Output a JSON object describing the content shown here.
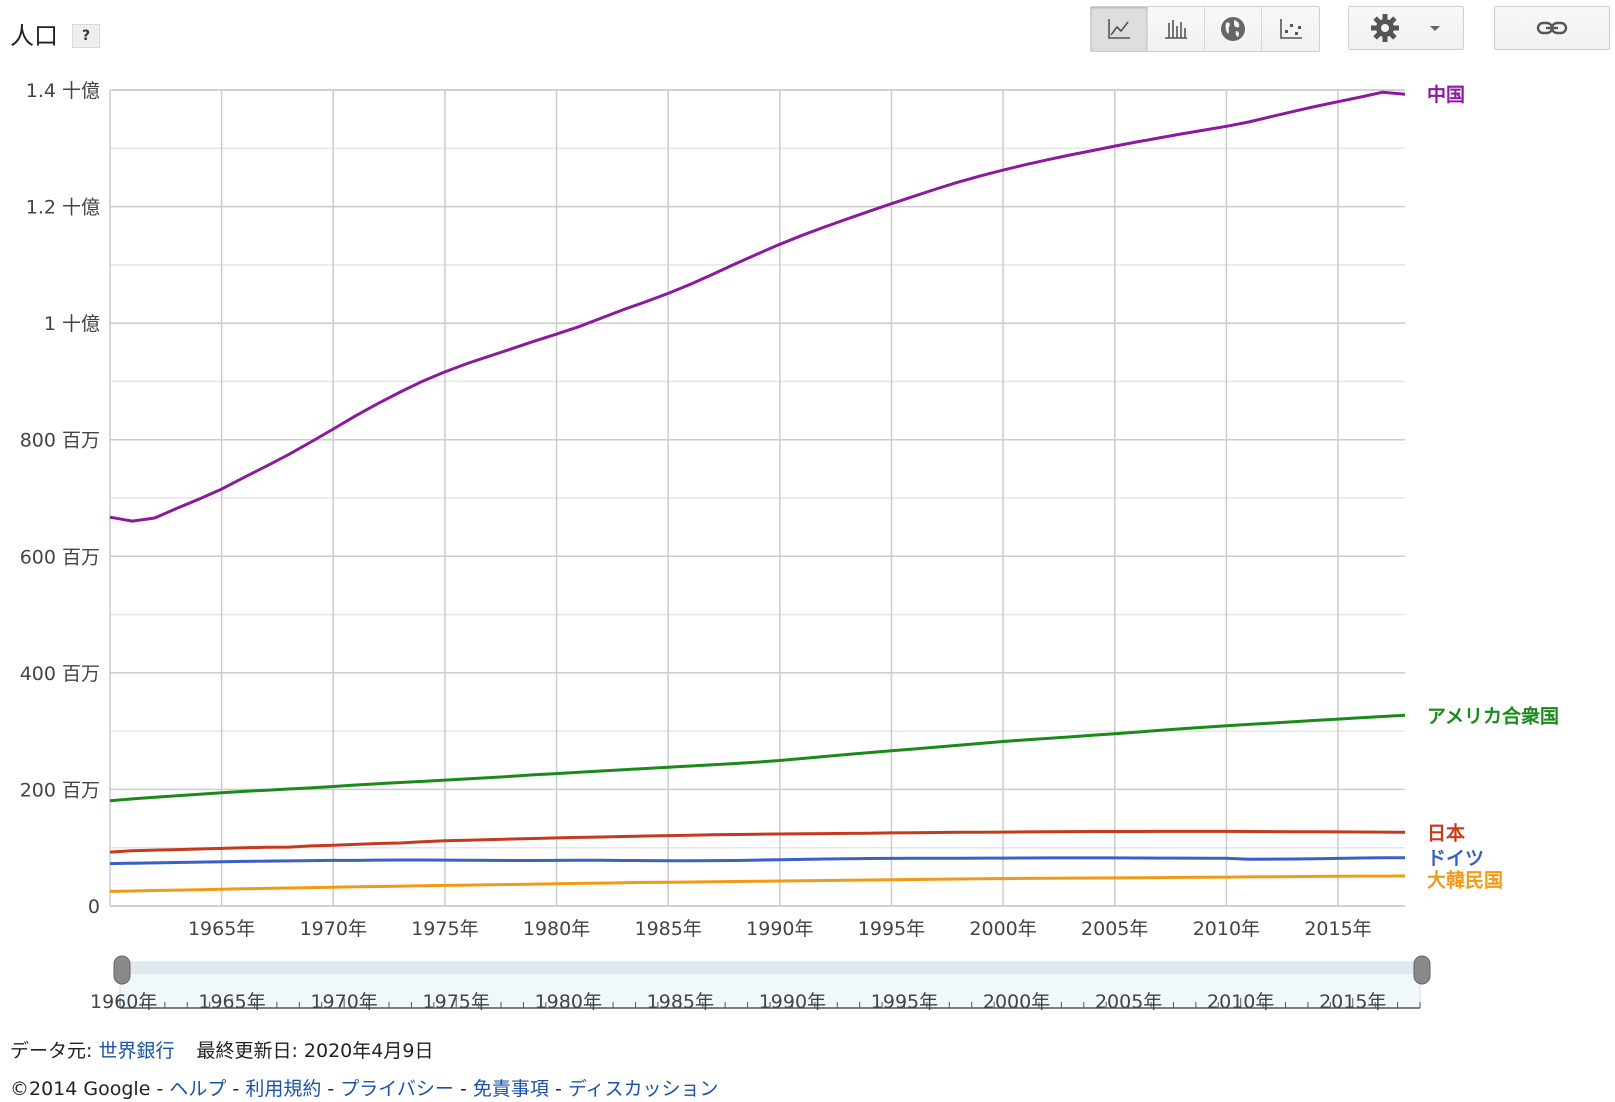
{
  "header": {
    "title": "人口",
    "help_label": "?"
  },
  "toolbar": {
    "views": [
      {
        "icon": "line-chart-icon",
        "active": true
      },
      {
        "icon": "bar-chart-icon",
        "active": false
      },
      {
        "icon": "globe-icon",
        "active": false
      },
      {
        "icon": "scatter-chart-icon",
        "active": false
      }
    ],
    "settings_icon": "gear-icon",
    "dropdown_icon": "caret-down-icon",
    "link_icon": "link-icon"
  },
  "chart_data": {
    "type": "line",
    "x": [
      1960,
      1961,
      1962,
      1963,
      1964,
      1965,
      1966,
      1967,
      1968,
      1969,
      1970,
      1971,
      1972,
      1973,
      1974,
      1975,
      1976,
      1977,
      1978,
      1979,
      1980,
      1981,
      1982,
      1983,
      1984,
      1985,
      1986,
      1987,
      1988,
      1989,
      1990,
      1991,
      1992,
      1993,
      1994,
      1995,
      1996,
      1997,
      1998,
      1999,
      2000,
      2001,
      2002,
      2003,
      2004,
      2005,
      2006,
      2007,
      2008,
      2009,
      2010,
      2011,
      2012,
      2013,
      2014,
      2015,
      2016,
      2017,
      2018
    ],
    "xlim": [
      1960,
      2018
    ],
    "ylim": [
      0,
      1400000000
    ],
    "x_tick_labels": [
      "1965年",
      "1970年",
      "1975年",
      "1980年",
      "1985年",
      "1990年",
      "1995年",
      "2000年",
      "2005年",
      "2010年",
      "2015年"
    ],
    "y_tick_labels": [
      "0",
      "200 百万",
      "400 百万",
      "600 百万",
      "800 百万",
      "1 十億",
      "1.2 十億",
      "1.4 十億"
    ],
    "grid": true,
    "legend": "right, labels at line ends",
    "series": [
      {
        "name": "中国",
        "color": "#8b1a9e",
        "values": [
          667070000,
          660330000,
          665770000,
          682340000,
          698360000,
          715190000,
          735400000,
          754550000,
          774510000,
          796030000,
          818320000,
          841110000,
          862030000,
          881940000,
          900350000,
          916395000,
          930685000,
          943455000,
          956165000,
          969005000,
          981235000,
          993885000,
          1008630000,
          1023310000,
          1036825000,
          1051040000,
          1066790000,
          1084035000,
          1101630000,
          1118650000,
          1135185000,
          1150780000,
          1164970000,
          1178440000,
          1191835000,
          1204855000,
          1217550000,
          1230075000,
          1241935000,
          1252735000,
          1262645000,
          1271850000,
          1280400000,
          1288400000,
          1296075000,
          1303720000,
          1311020000,
          1317885000,
          1324655000,
          1331260000,
          1337705000,
          1345035000,
          1354190000,
          1363240000,
          1371860000,
          1379860000,
          1387790000,
          1396215000,
          1392730000
        ]
      },
      {
        "name": "アメリカ合衆国",
        "color": "#1b8a1b",
        "values": [
          180671000,
          183691000,
          186538000,
          189242000,
          191889000,
          194303000,
          196560000,
          198712000,
          200706000,
          202677000,
          205052000,
          207661000,
          209896000,
          211909000,
          213854000,
          215973000,
          218035000,
          220239000,
          222585000,
          225055000,
          227225000,
          229466000,
          231664000,
          233792000,
          235825000,
          237924000,
          240133000,
          242289000,
          244499000,
          246819000,
          249623000,
          252981000,
          256514000,
          259919000,
          263126000,
          266278000,
          269394000,
          272657000,
          275854000,
          279040000,
          282162000,
          284969000,
          287625000,
          290108000,
          292805000,
          295517000,
          298380000,
          301231000,
          304094000,
          306772000,
          309327000,
          311583000,
          313878000,
          316060000,
          318386000,
          320739000,
          323072000,
          325147000,
          327167000
        ]
      },
      {
        "name": "日本",
        "color": "#c53a1e",
        "values": [
          92500572,
          94943000,
          95832000,
          96812000,
          97826000,
          98883000,
          99790000,
          100725000,
          101061000,
          103172000,
          104345000,
          105697000,
          107188000,
          108079000,
          110162000,
          111940000,
          112771000,
          113863000,
          114898000,
          115870000,
          116782000,
          117648000,
          118449000,
          119259000,
          120018000,
          120754000,
          121492000,
          122091000,
          122613000,
          123116000,
          123537000,
          123921000,
          124229000,
          124536000,
          124961000,
          125439000,
          125757000,
          126057000,
          126400000,
          126631000,
          126843000,
          127149000,
          127445000,
          127718000,
          127761000,
          127773000,
          127854000,
          128001000,
          128063000,
          128047000,
          128070000,
          127833000,
          127629000,
          127445000,
          127276000,
          127141000,
          126994000,
          126785000,
          126529000
        ]
      },
      {
        "name": "ドイツ",
        "color": "#3a5fc7",
        "values": [
          72814900,
          73377632,
          74025784,
          74714353,
          75318337,
          75963695,
          76600311,
          76951336,
          77294314,
          77909682,
          78169289,
          78312842,
          78688452,
          78936666,
          78967433,
          78673554,
          78336950,
          78159814,
          78091820,
          78126350,
          78288576,
          78407907,
          78333366,
          78128282,
          77858685,
          77684873,
          77720436,
          77839920,
          78144619,
          78751283,
          79433029,
          80013896,
          80624598,
          81156363,
          81438348,
          81678051,
          81914831,
          82034771,
          82047195,
          82100243,
          82211508,
          82349925,
          82488495,
          82534176,
          82516260,
          82469422,
          82376451,
          82266372,
          82110097,
          81902307,
          81776930,
          80274983,
          80425823,
          80645605,
          80982500,
          81686611,
          82348669,
          82657002,
          82927922
        ]
      },
      {
        "name": "大韓民国",
        "color": "#f29a16",
        "values": [
          25012374,
          25765673,
          26513030,
          27261747,
          27984155,
          28704674,
          29435571,
          30130983,
          30838302,
          31544266,
          32240827,
          32882704,
          33505406,
          34103149,
          34692266,
          35280725,
          35848523,
          36411795,
          36969185,
          37534236,
          38123775,
          38723248,
          39326352,
          39910403,
          40405956,
          40805744,
          41213674,
          41621690,
          42031247,
          42449038,
          42869283,
          43295704,
          43747962,
          44194628,
          44641540,
          45092991,
          45524681,
          45953580,
          46286503,
          46616677,
          47008111,
          47370164,
          47644736,
          47892330,
          48082519,
          48184561,
          48438292,
          48683638,
          49054708,
          49307835,
          49554112,
          49936638,
          50199853,
          50428893,
          50746659,
          51014947,
          51217803,
          51361911,
          51606633
        ]
      }
    ]
  },
  "range": {
    "start_label": "1960年",
    "tick_labels": [
      "1965年",
      "1970年",
      "1975年",
      "1980年",
      "1985年",
      "1990年",
      "1995年",
      "2000年",
      "2005年",
      "2010年",
      "2015年"
    ]
  },
  "source": {
    "prefix": "データ元:",
    "provider": "世界銀行",
    "updated": "最終更新日: 2020年4月9日"
  },
  "footer": {
    "copyright": "©2014 Google",
    "sep": "-",
    "links": [
      "ヘルプ",
      "利用規約",
      "プライバシー",
      "免責事項",
      "ディスカッション"
    ]
  }
}
